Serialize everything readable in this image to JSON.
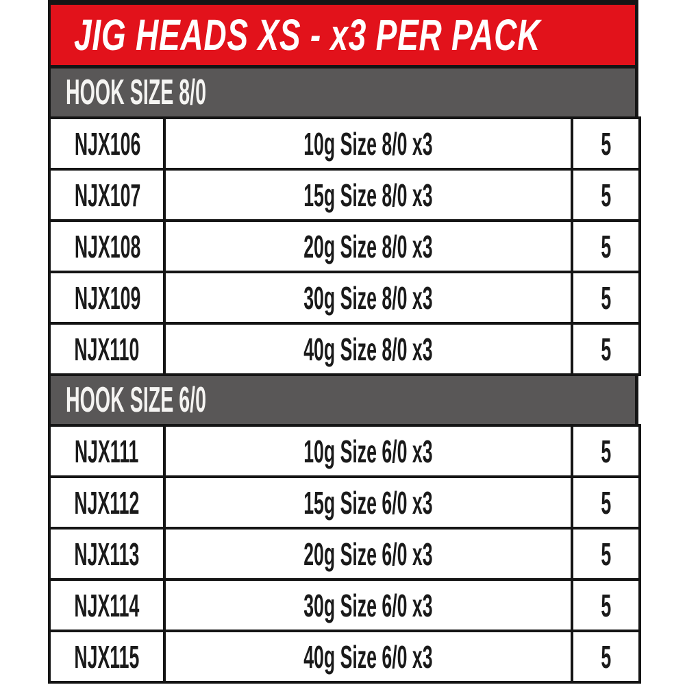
{
  "banner": {
    "title": "JIG HEADS XS - x3 PER PACK"
  },
  "colors": {
    "banner_bg": "#e2121b",
    "section_bg": "#595757",
    "border": "#151515"
  },
  "sections": [
    {
      "header": "HOOK SIZE 8/0",
      "rows": [
        {
          "code": "NJX106",
          "desc": "10g Size 8/0 x3",
          "qty": "5"
        },
        {
          "code": "NJX107",
          "desc": "15g Size 8/0 x3",
          "qty": "5"
        },
        {
          "code": "NJX108",
          "desc": "20g Size 8/0 x3",
          "qty": "5"
        },
        {
          "code": "NJX109",
          "desc": "30g Size 8/0 x3",
          "qty": "5"
        },
        {
          "code": "NJX110",
          "desc": "40g Size 8/0 x3",
          "qty": "5"
        }
      ]
    },
    {
      "header": "HOOK SIZE 6/0",
      "rows": [
        {
          "code": "NJX111",
          "desc": "10g Size 6/0 x3",
          "qty": "5"
        },
        {
          "code": "NJX112",
          "desc": "15g Size 6/0 x3",
          "qty": "5"
        },
        {
          "code": "NJX113",
          "desc": "20g Size 6/0 x3",
          "qty": "5"
        },
        {
          "code": "NJX114",
          "desc": "30g Size 6/0 x3",
          "qty": "5"
        },
        {
          "code": "NJX115",
          "desc": "40g Size 6/0 x3",
          "qty": "5"
        }
      ]
    }
  ]
}
